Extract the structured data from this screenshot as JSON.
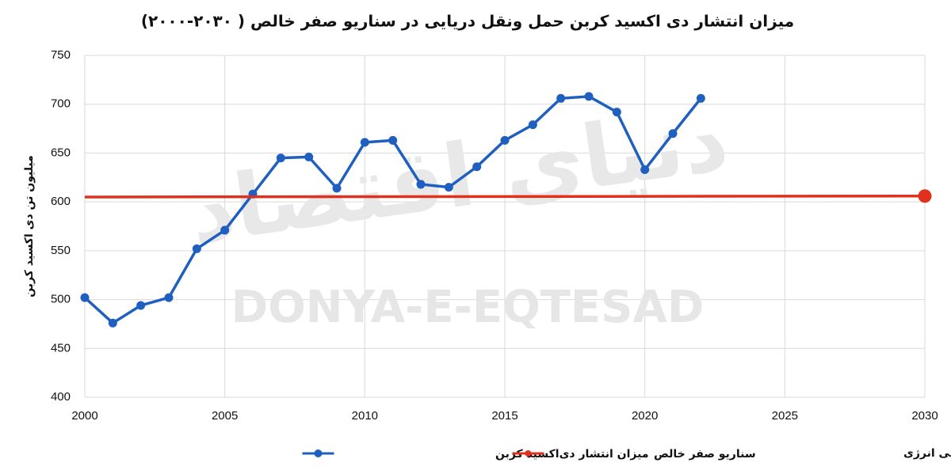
{
  "chart_data": {
    "type": "line",
    "title": "میزان انتشار دی اکسید کربن حمل ونقل دریایی در سناریو صفر خالص ( ۲۰۳۰-۲۰۰۰)",
    "y_label": "میلیون تن دی اکسید کربن",
    "source": "ماخذ داده: آژانس بین المللی انرژی",
    "watermark": [
      "دنیای اقتصاد",
      "DONYA-E-EQTESAD"
    ],
    "xlim": [
      2000,
      2030
    ],
    "xticks": [
      2000,
      2005,
      2010,
      2015,
      2020,
      2025,
      2030
    ],
    "ylim": [
      400,
      750
    ],
    "yticks": [
      400,
      450,
      500,
      550,
      600,
      650,
      700,
      750
    ],
    "grid": true,
    "series": [
      {
        "name": "میزان انتشار دی‌اکسید کربن",
        "color": "#1f5fbf",
        "markers": "all",
        "x": [
          2000,
          2001,
          2002,
          2003,
          2004,
          2005,
          2006,
          2007,
          2008,
          2009,
          2010,
          2011,
          2012,
          2013,
          2014,
          2015,
          2016,
          2017,
          2018,
          2019,
          2020,
          2021,
          2022
        ],
        "values": [
          502,
          476,
          494,
          502,
          552,
          571,
          608,
          645,
          646,
          614,
          661,
          663,
          618,
          615,
          636,
          663,
          679,
          706,
          708,
          692,
          633,
          670,
          706
        ]
      },
      {
        "name": "سناریو صفر خالص",
        "color": "#e0301e",
        "markers": "last",
        "x": [
          2000,
          2030
        ],
        "values": [
          605,
          606
        ]
      }
    ]
  }
}
